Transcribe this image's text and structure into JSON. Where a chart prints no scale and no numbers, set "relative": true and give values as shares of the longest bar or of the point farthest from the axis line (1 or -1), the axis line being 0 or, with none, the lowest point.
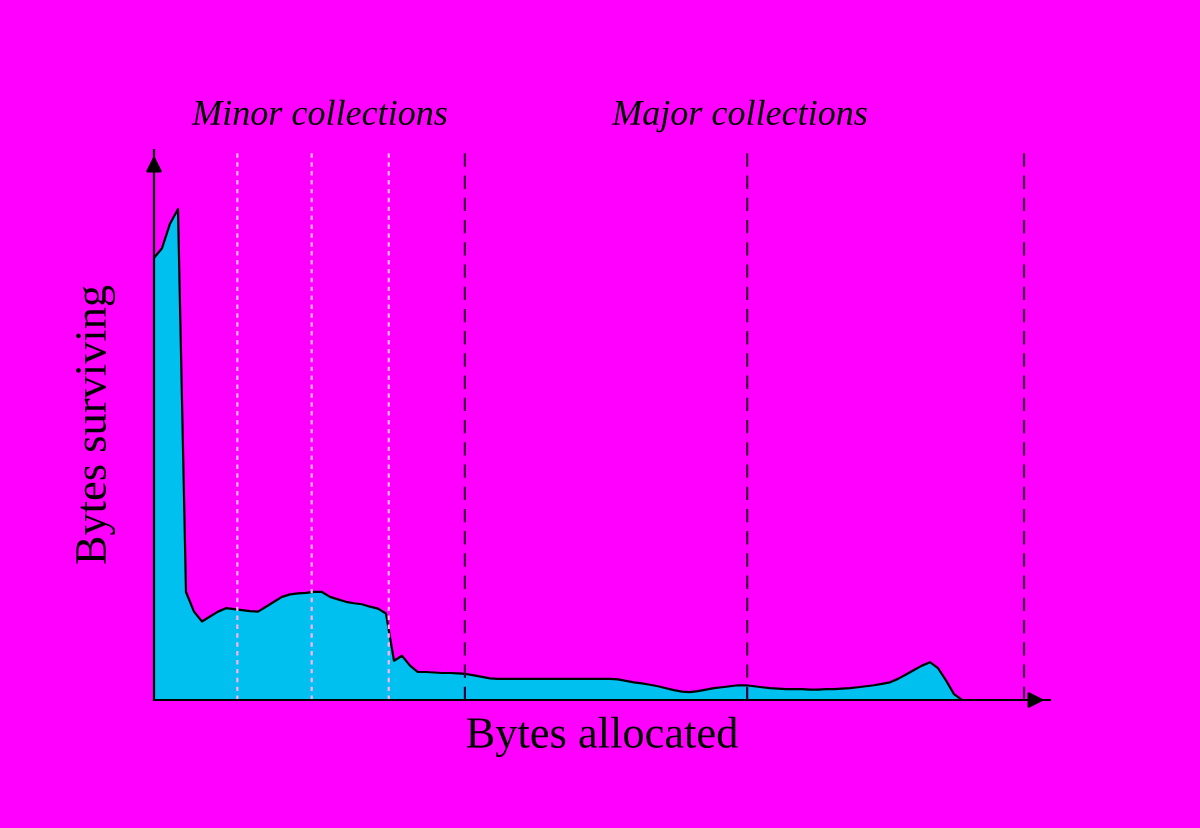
{
  "chart_data": {
    "type": "area",
    "relative": true,
    "xlabel": "Bytes allocated",
    "ylabel": "Bytes surviving",
    "annotations": [
      "Minor collections",
      "Major collections"
    ],
    "tick_labels": false,
    "categories": [
      null,
      null,
      null,
      null,
      null,
      null,
      null,
      null,
      null,
      null,
      null,
      null,
      null,
      null,
      null,
      null,
      null,
      null,
      null,
      null,
      null,
      null,
      null,
      null,
      null,
      null,
      null,
      null,
      null,
      null,
      null,
      null,
      null,
      null,
      null,
      null,
      null,
      null,
      null,
      null,
      null,
      null,
      null,
      null,
      null,
      null,
      null,
      null,
      null,
      null,
      null,
      null,
      null,
      null,
      null,
      null,
      null,
      null,
      null,
      null,
      null,
      null,
      null,
      null,
      null,
      null,
      null,
      null,
      null,
      null,
      null,
      null,
      null,
      null,
      null,
      null,
      null,
      null,
      null,
      null,
      null,
      null,
      null,
      null,
      null,
      null,
      null,
      null,
      null,
      null,
      null,
      null,
      null,
      null,
      null,
      null,
      null,
      null,
      null,
      null,
      null,
      null,
      null,
      null,
      null,
      null,
      null,
      null,
      null,
      null,
      null,
      null
    ],
    "series": [
      {
        "color": "#00c0f0",
        "values": [
          0.9,
          0.92,
          0.97,
          1.0,
          0.22,
          0.18,
          0.16,
          0.17,
          0.18,
          0.187,
          0.185,
          0.183,
          0.181,
          0.18,
          0.19,
          0.2,
          0.21,
          0.215,
          0.217,
          0.218,
          0.22,
          0.22,
          0.21,
          0.205,
          0.2,
          0.197,
          0.195,
          0.19,
          0.186,
          0.176,
          0.08,
          0.09,
          0.07,
          0.057,
          0.057,
          0.056,
          0.055,
          0.055,
          0.054,
          0.053,
          0.05,
          0.047,
          0.044,
          0.043,
          0.043,
          0.043,
          0.043,
          0.043,
          0.043,
          0.043,
          0.043,
          0.043,
          0.043,
          0.043,
          0.043,
          0.043,
          0.043,
          0.043,
          0.042,
          0.039,
          0.036,
          0.034,
          0.031,
          0.028,
          0.024,
          0.02,
          0.017,
          0.016,
          0.018,
          0.021,
          0.024,
          0.026,
          0.028,
          0.03,
          0.03,
          0.028,
          0.026,
          0.024,
          0.023,
          0.022,
          0.022,
          0.022,
          0.021,
          0.021,
          0.022,
          0.022,
          0.023,
          0.024,
          0.026,
          0.028,
          0.03,
          0.033,
          0.036,
          0.043,
          0.052,
          0.061,
          0.07,
          0.077,
          0.065,
          0.04,
          0.012,
          0,
          0,
          0,
          0,
          0,
          0,
          0,
          0,
          0,
          0,
          0
        ]
      }
    ]
  }
}
